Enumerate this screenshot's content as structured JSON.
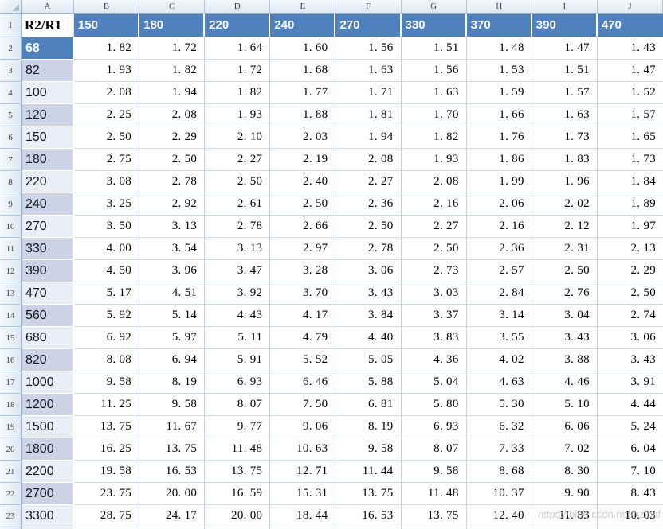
{
  "app": {
    "title": "spreadsheet-grid-view"
  },
  "colors": {
    "header_blue": "#4f81bd",
    "band_purple": "#ccd3e6",
    "band_light": "#eaeef6",
    "chrome_border": "#9eb6ce",
    "gridline_vertical": "#c4cfe0",
    "gridline_horizontal": "#d2dae8"
  },
  "sheet": {
    "column_letters": [
      "A",
      "B",
      "C",
      "D",
      "E",
      "F",
      "G",
      "H",
      "I",
      "J"
    ],
    "header_row": {
      "row_number": "1",
      "corner_label": "R2/R1",
      "values": [
        "150",
        "180",
        "220",
        "240",
        "270",
        "330",
        "370",
        "390",
        "470"
      ]
    },
    "rows": [
      {
        "row_number": "2",
        "label": "68",
        "band": "blue",
        "values": [
          "1. 82",
          "1. 72",
          "1. 64",
          "1. 60",
          "1. 56",
          "1. 51",
          "1. 48",
          "1. 47",
          "1. 43"
        ]
      },
      {
        "row_number": "3",
        "label": "82",
        "band": "purple",
        "values": [
          "1. 93",
          "1. 82",
          "1. 72",
          "1. 68",
          "1. 63",
          "1. 56",
          "1. 53",
          "1. 51",
          "1. 47"
        ]
      },
      {
        "row_number": "4",
        "label": "100",
        "band": "light",
        "values": [
          "2. 08",
          "1. 94",
          "1. 82",
          "1. 77",
          "1. 71",
          "1. 63",
          "1. 59",
          "1. 57",
          "1. 52"
        ]
      },
      {
        "row_number": "5",
        "label": "120",
        "band": "purple",
        "values": [
          "2. 25",
          "2. 08",
          "1. 93",
          "1. 88",
          "1. 81",
          "1. 70",
          "1. 66",
          "1. 63",
          "1. 57"
        ]
      },
      {
        "row_number": "6",
        "label": "150",
        "band": "light",
        "values": [
          "2. 50",
          "2. 29",
          "2. 10",
          "2. 03",
          "1. 94",
          "1. 82",
          "1. 76",
          "1. 73",
          "1. 65"
        ]
      },
      {
        "row_number": "7",
        "label": "180",
        "band": "purple",
        "values": [
          "2. 75",
          "2. 50",
          "2. 27",
          "2. 19",
          "2. 08",
          "1. 93",
          "1. 86",
          "1. 83",
          "1. 73"
        ]
      },
      {
        "row_number": "8",
        "label": "220",
        "band": "light",
        "values": [
          "3. 08",
          "2. 78",
          "2. 50",
          "2. 40",
          "2. 27",
          "2. 08",
          "1. 99",
          "1. 96",
          "1. 84"
        ]
      },
      {
        "row_number": "9",
        "label": "240",
        "band": "purple",
        "values": [
          "3. 25",
          "2. 92",
          "2. 61",
          "2. 50",
          "2. 36",
          "2. 16",
          "2. 06",
          "2. 02",
          "1. 89"
        ]
      },
      {
        "row_number": "10",
        "label": "270",
        "band": "light",
        "values": [
          "3. 50",
          "3. 13",
          "2. 78",
          "2. 66",
          "2. 50",
          "2. 27",
          "2. 16",
          "2. 12",
          "1. 97"
        ]
      },
      {
        "row_number": "11",
        "label": "330",
        "band": "purple",
        "values": [
          "4. 00",
          "3. 54",
          "3. 13",
          "2. 97",
          "2. 78",
          "2. 50",
          "2. 36",
          "2. 31",
          "2. 13"
        ]
      },
      {
        "row_number": "12",
        "label": "390",
        "band": "purple",
        "values": [
          "4. 50",
          "3. 96",
          "3. 47",
          "3. 28",
          "3. 06",
          "2. 73",
          "2. 57",
          "2. 50",
          "2. 29"
        ]
      },
      {
        "row_number": "13",
        "label": "470",
        "band": "light",
        "values": [
          "5. 17",
          "4. 51",
          "3. 92",
          "3. 70",
          "3. 43",
          "3. 03",
          "2. 84",
          "2. 76",
          "2. 50"
        ]
      },
      {
        "row_number": "14",
        "label": "560",
        "band": "purple",
        "values": [
          "5. 92",
          "5. 14",
          "4. 43",
          "4. 17",
          "3. 84",
          "3. 37",
          "3. 14",
          "3. 04",
          "2. 74"
        ]
      },
      {
        "row_number": "15",
        "label": "680",
        "band": "light",
        "values": [
          "6. 92",
          "5. 97",
          "5. 11",
          "4. 79",
          "4. 40",
          "3. 83",
          "3. 55",
          "3. 43",
          "3. 06"
        ]
      },
      {
        "row_number": "16",
        "label": "820",
        "band": "purple",
        "values": [
          "8. 08",
          "6. 94",
          "5. 91",
          "5. 52",
          "5. 05",
          "4. 36",
          "4. 02",
          "3. 88",
          "3. 43"
        ]
      },
      {
        "row_number": "17",
        "label": "1000",
        "band": "light",
        "values": [
          "9. 58",
          "8. 19",
          "6. 93",
          "6. 46",
          "5. 88",
          "5. 04",
          "4. 63",
          "4. 46",
          "3. 91"
        ]
      },
      {
        "row_number": "18",
        "label": "1200",
        "band": "purple",
        "values": [
          "11. 25",
          "9. 58",
          "8. 07",
          "7. 50",
          "6. 81",
          "5. 80",
          "5. 30",
          "5. 10",
          "4. 44"
        ]
      },
      {
        "row_number": "19",
        "label": "1500",
        "band": "light",
        "values": [
          "13. 75",
          "11. 67",
          "9. 77",
          "9. 06",
          "8. 19",
          "6. 93",
          "6. 32",
          "6. 06",
          "5. 24"
        ]
      },
      {
        "row_number": "20",
        "label": "1800",
        "band": "purple",
        "values": [
          "16. 25",
          "13. 75",
          "11. 48",
          "10. 63",
          "9. 58",
          "8. 07",
          "7. 33",
          "7. 02",
          "6. 04"
        ]
      },
      {
        "row_number": "21",
        "label": "2200",
        "band": "light",
        "values": [
          "19. 58",
          "16. 53",
          "13. 75",
          "12. 71",
          "11. 44",
          "9. 58",
          "8. 68",
          "8. 30",
          "7. 10"
        ]
      },
      {
        "row_number": "22",
        "label": "2700",
        "band": "purple",
        "values": [
          "23. 75",
          "20. 00",
          "16. 59",
          "15. 31",
          "13. 75",
          "11. 48",
          "10. 37",
          "9. 90",
          "8. 43"
        ]
      },
      {
        "row_number": "23",
        "label": "3300",
        "band": "light",
        "values": [
          "28. 75",
          "24. 17",
          "20. 00",
          "18. 44",
          "16. 53",
          "13. 75",
          "12. 40",
          "11. 83",
          "10. 03"
        ]
      }
    ]
  },
  "watermark": {
    "text": "https://blog.csdn.net/hzldxf"
  }
}
